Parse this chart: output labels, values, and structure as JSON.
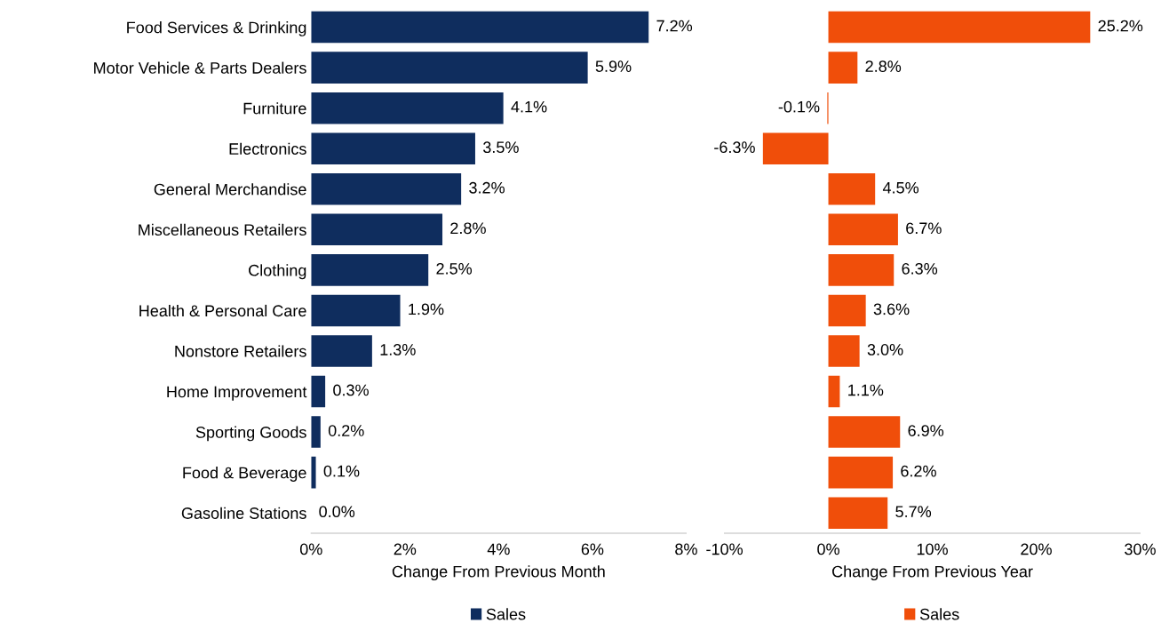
{
  "chart_data": [
    {
      "type": "bar",
      "orientation": "horizontal",
      "xlabel": "Change From Previous Month",
      "legend": "bottom",
      "categories": [
        "Food Services & Drinking",
        "Motor Vehicle & Parts Dealers",
        "Furniture",
        "Electronics",
        "General Merchandise",
        "Miscellaneous Retailers",
        "Clothing",
        "Health & Personal Care",
        "Nonstore Retailers",
        "Home Improvement",
        "Sporting Goods",
        "Food & Beverage",
        "Gasoline Stations"
      ],
      "series": [
        {
          "name": "Sales",
          "color": "#0f2d5e",
          "values": [
            7.2,
            5.9,
            4.1,
            3.5,
            3.2,
            2.8,
            2.5,
            1.9,
            1.3,
            0.3,
            0.2,
            0.1,
            0.0
          ],
          "value_labels": [
            "7.2%",
            "5.9%",
            "4.1%",
            "3.5%",
            "3.2%",
            "2.8%",
            "2.5%",
            "1.9%",
            "1.3%",
            "0.3%",
            "0.2%",
            "0.1%",
            "0.0%"
          ]
        }
      ],
      "xlim": [
        0,
        8
      ],
      "xticks": [
        {
          "value": 0,
          "label": "0%"
        },
        {
          "value": 2,
          "label": "2%"
        },
        {
          "value": 4,
          "label": "4%"
        },
        {
          "value": 6,
          "label": "6%"
        },
        {
          "value": 8,
          "label": "8%"
        }
      ]
    },
    {
      "type": "bar",
      "orientation": "horizontal",
      "xlabel": "Change From Previous Year",
      "legend": "bottom",
      "tick_labels": "x",
      "categories": [
        null,
        null,
        null,
        null,
        null,
        null,
        null,
        null,
        null,
        null,
        null,
        null,
        null
      ],
      "series": [
        {
          "name": "Sales",
          "color": "#f04e0a",
          "values": [
            25.2,
            2.8,
            -0.1,
            -6.3,
            4.5,
            6.7,
            6.3,
            3.6,
            3.0,
            1.1,
            6.9,
            6.2,
            5.7
          ],
          "value_labels": [
            "25.2%",
            "2.8%",
            "-0.1%",
            "-6.3%",
            "4.5%",
            "6.7%",
            "6.3%",
            "3.6%",
            "3.0%",
            "1.1%",
            "6.9%",
            "6.2%",
            "5.7%"
          ]
        }
      ],
      "xlim": [
        -10,
        30
      ],
      "xticks": [
        {
          "value": -10,
          "label": "-10%"
        },
        {
          "value": 0,
          "label": "0%"
        },
        {
          "value": 10,
          "label": "10%"
        },
        {
          "value": 20,
          "label": "20%"
        },
        {
          "value": 30,
          "label": "30%"
        }
      ]
    }
  ]
}
